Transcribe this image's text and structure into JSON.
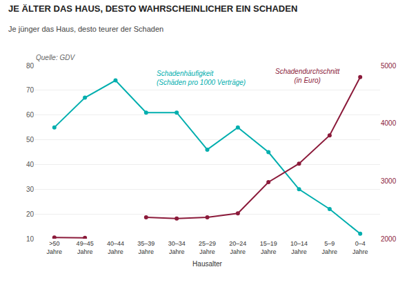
{
  "chart_data": {
    "type": "line",
    "title": "JE ÄLTER DAS HAUS, DESTO WAHRSCHEINLICHER EIN SCHADEN",
    "subtitle": "Je jünger das Haus, desto teurer der Schaden",
    "source": "Quelle: GDV",
    "xlabel": "Hausalter",
    "categories": [
      ">50\nJahre",
      "49–45\nJahre",
      "40–44\nJahre",
      "35–39\nJahre",
      "30–34\nJahre",
      "25–29\nJahre",
      "20–24\nJahre",
      "15–19\nJahre",
      "10–14\nJahre",
      "5–9\nJahre",
      "0–4\nJahre"
    ],
    "series": [
      {
        "name": "Schadenhäufigkeit\n(Schäden pro 1000 Verträge)",
        "color": "#00AEAE",
        "marker": "circle",
        "values": [
          55,
          67,
          74,
          61,
          61,
          46,
          55,
          45,
          30,
          22,
          12
        ]
      },
      {
        "name": "Schadendurchschnitt\n(in Euro)",
        "color": "#8B1A3A",
        "marker": "circle",
        "axis": "y2",
        "values": [
          2020,
          2015,
          null,
          2370,
          2350,
          2370,
          2440,
          2980,
          3300,
          3790,
          4800
        ]
      }
    ],
    "ylim": [
      10,
      80
    ],
    "yticks": [
      10,
      20,
      30,
      40,
      50,
      60,
      70,
      80
    ],
    "y2lim": [
      2000,
      5000
    ],
    "y2ticks": [
      2000,
      3000,
      4000,
      5000
    ],
    "grid": true
  }
}
